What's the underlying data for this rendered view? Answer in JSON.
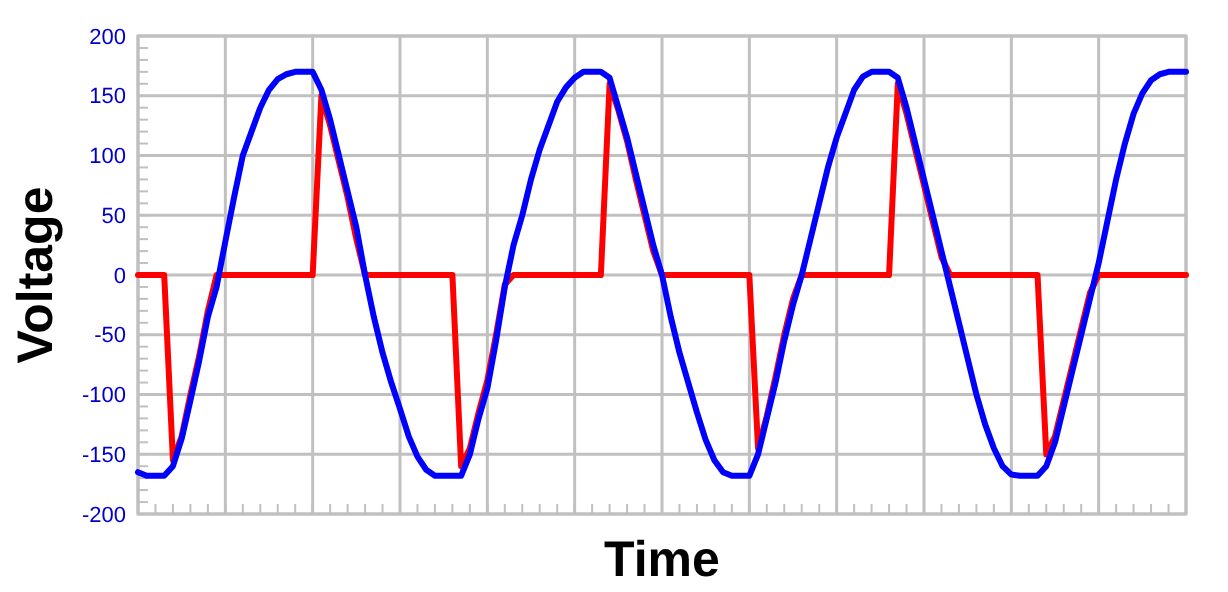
{
  "chart_data": {
    "type": "line",
    "xlabel": "Time",
    "ylabel": "Voltage",
    "categories": [
      null,
      null,
      null,
      null,
      null,
      null,
      null,
      null,
      null,
      null,
      null,
      null,
      null,
      null,
      null,
      null,
      null,
      null,
      null,
      null,
      null,
      null,
      null,
      null,
      null,
      null,
      null,
      null,
      null,
      null,
      null,
      null,
      null,
      null,
      null,
      null,
      null,
      null,
      null,
      null,
      null,
      null,
      null,
      null,
      null,
      null,
      null,
      null,
      null,
      null,
      null,
      null,
      null,
      null,
      null,
      null,
      null,
      null,
      null,
      null,
      null,
      null,
      null,
      null,
      null,
      null,
      null,
      null,
      null,
      null,
      null,
      null,
      null,
      null,
      null,
      null,
      null,
      null,
      null,
      null,
      null,
      null,
      null,
      null,
      null,
      null,
      null,
      null,
      null,
      null,
      null,
      null,
      null,
      null,
      null,
      null,
      null,
      null,
      null,
      null,
      null,
      null,
      null,
      null,
      null,
      null,
      null,
      null,
      null,
      null,
      null,
      null,
      null,
      null,
      null,
      null,
      null,
      null,
      null,
      null,
      null
    ],
    "series": [
      {
        "color": "#ff0000",
        "values": [
          0,
          0,
          0,
          0,
          -155,
          -135,
          -100,
          -68,
          -30,
          0,
          0,
          0,
          0,
          0,
          0,
          0,
          0,
          0,
          0,
          0,
          0,
          150,
          125,
          95,
          65,
          30,
          0,
          0,
          0,
          0,
          0,
          0,
          0,
          0,
          0,
          0,
          0,
          -160,
          -145,
          -115,
          -88,
          -50,
          -8,
          0,
          0,
          0,
          0,
          0,
          0,
          0,
          0,
          0,
          0,
          0,
          160,
          138,
          112,
          80,
          50,
          20,
          0,
          0,
          0,
          0,
          0,
          0,
          0,
          0,
          0,
          0,
          0,
          -145,
          -118,
          -85,
          -50,
          -20,
          0,
          0,
          0,
          0,
          0,
          0,
          0,
          0,
          0,
          0,
          0,
          160,
          135,
          105,
          75,
          45,
          15,
          0,
          0,
          0,
          0,
          0,
          0,
          0,
          0,
          0,
          0,
          0,
          -150,
          -135,
          -105,
          -75,
          -45,
          -15,
          0,
          0,
          0,
          0,
          0,
          0,
          0,
          0,
          0,
          0,
          0
        ]
      },
      {
        "color": "#0000ff",
        "values": [
          -165,
          -168,
          -168,
          -168,
          -160,
          -137,
          -105,
          -72,
          -35,
          -10,
          28,
          65,
          100,
          120,
          140,
          155,
          164,
          168,
          170,
          170,
          170,
          155,
          130,
          100,
          70,
          40,
          0,
          -35,
          -65,
          -90,
          -112,
          -135,
          -152,
          -163,
          -168,
          -168,
          -168,
          -168,
          -150,
          -120,
          -95,
          -55,
          -10,
          25,
          50,
          80,
          105,
          125,
          145,
          157,
          165,
          170,
          170,
          170,
          165,
          140,
          115,
          85,
          55,
          25,
          0,
          -35,
          -65,
          -90,
          -115,
          -138,
          -155,
          -165,
          -168,
          -168,
          -168,
          -150,
          -120,
          -90,
          -55,
          -25,
          0,
          30,
          60,
          90,
          115,
          135,
          155,
          166,
          170,
          170,
          170,
          165,
          140,
          110,
          80,
          50,
          20,
          -10,
          -40,
          -70,
          -100,
          -125,
          -145,
          -160,
          -167,
          -168,
          -168,
          -168,
          -160,
          -140,
          -110,
          -80,
          -50,
          -20,
          10,
          45,
          80,
          110,
          135,
          152,
          163,
          168,
          170,
          170,
          170
        ]
      }
    ],
    "ylim": [
      -200,
      200
    ],
    "yticks": [
      -200,
      -150,
      -100,
      -50,
      0,
      50,
      100,
      150,
      200
    ],
    "grid": true,
    "tick_labels": "y",
    "line_style": "solid"
  }
}
